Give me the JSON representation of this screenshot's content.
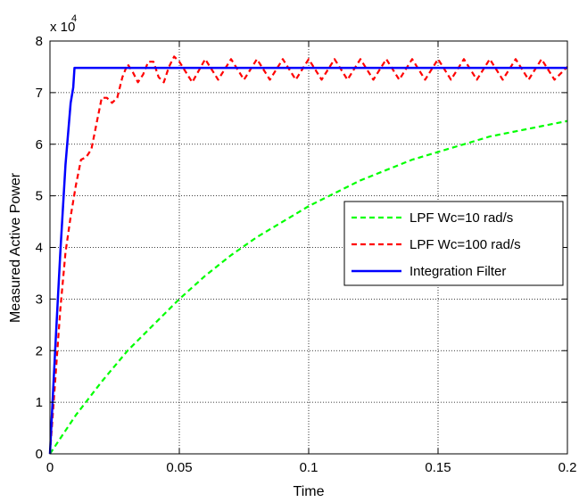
{
  "chart_data": {
    "type": "line",
    "xlabel": "Time",
    "ylabel": "Measured Active Power",
    "exponent_label": "x 10",
    "exponent_power": "4",
    "xlim": [
      0,
      0.2
    ],
    "ylim": [
      0,
      8
    ],
    "x_ticks": [
      "0",
      "0.05",
      "0.1",
      "0.15",
      "0.2"
    ],
    "y_ticks": [
      "0",
      "1",
      "2",
      "3",
      "4",
      "5",
      "6",
      "7",
      "8"
    ],
    "grid": true,
    "legend_position": "center-right",
    "series": [
      {
        "name": "LPF Wc=10 rad/s",
        "color": "#00ff00",
        "style": "dashed",
        "x": [
          0,
          0.01,
          0.02,
          0.03,
          0.04,
          0.05,
          0.06,
          0.07,
          0.08,
          0.09,
          0.1,
          0.11,
          0.12,
          0.13,
          0.14,
          0.15,
          0.16,
          0.17,
          0.18,
          0.19,
          0.2
        ],
        "y": [
          0,
          0.75,
          1.4,
          2.0,
          2.5,
          3.0,
          3.45,
          3.85,
          4.2,
          4.5,
          4.8,
          5.05,
          5.3,
          5.5,
          5.7,
          5.85,
          6.0,
          6.15,
          6.25,
          6.35,
          6.45
        ]
      },
      {
        "name": "LPF Wc=100 rad/s",
        "color": "#ff0000",
        "style": "dashed",
        "x": [
          0,
          0.002,
          0.004,
          0.006,
          0.008,
          0.01,
          0.012,
          0.014,
          0.016,
          0.018,
          0.02,
          0.022,
          0.024,
          0.026,
          0.028,
          0.03,
          0.032,
          0.034,
          0.036,
          0.038,
          0.04,
          0.042,
          0.044,
          0.046,
          0.048,
          0.05,
          0.055,
          0.06,
          0.065,
          0.07,
          0.075,
          0.08,
          0.085,
          0.09,
          0.095,
          0.1,
          0.105,
          0.11,
          0.115,
          0.12,
          0.125,
          0.13,
          0.135,
          0.14,
          0.145,
          0.15,
          0.155,
          0.16,
          0.165,
          0.17,
          0.175,
          0.18,
          0.185,
          0.19,
          0.195,
          0.2
        ],
        "y": [
          0,
          1.4,
          2.8,
          3.9,
          4.6,
          5.2,
          5.7,
          5.75,
          5.9,
          6.4,
          6.9,
          6.9,
          6.8,
          6.9,
          7.3,
          7.55,
          7.4,
          7.2,
          7.35,
          7.6,
          7.6,
          7.3,
          7.2,
          7.5,
          7.7,
          7.6,
          7.2,
          7.65,
          7.25,
          7.65,
          7.25,
          7.65,
          7.25,
          7.65,
          7.25,
          7.65,
          7.25,
          7.65,
          7.25,
          7.65,
          7.25,
          7.65,
          7.25,
          7.65,
          7.25,
          7.65,
          7.25,
          7.65,
          7.25,
          7.65,
          7.25,
          7.65,
          7.25,
          7.65,
          7.25,
          7.5
        ]
      },
      {
        "name": "Integration Filter",
        "color": "#0000ff",
        "style": "solid",
        "x": [
          0,
          0.001,
          0.002,
          0.004,
          0.006,
          0.008,
          0.009,
          0.0095,
          0.2
        ],
        "y": [
          0,
          1.0,
          2.0,
          3.9,
          5.6,
          6.8,
          7.1,
          7.48,
          7.48
        ]
      }
    ]
  }
}
